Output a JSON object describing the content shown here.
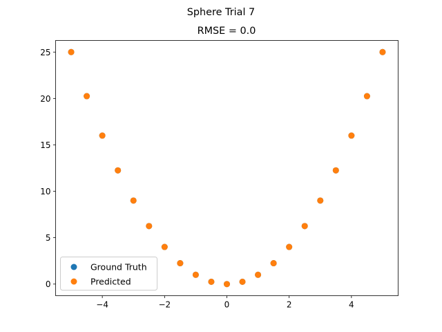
{
  "figure": {
    "suptitle": "Sphere Trial 7"
  },
  "chart_data": {
    "type": "scatter",
    "title": "RMSE = 0.0",
    "xlabel": "",
    "ylabel": "",
    "xlim": [
      -5.5,
      5.5
    ],
    "ylim": [
      -1.25,
      26.25
    ],
    "xticks": [
      -4,
      -2,
      0,
      2,
      4
    ],
    "xtick_labels": [
      "−4",
      "−2",
      "0",
      "2",
      "4"
    ],
    "yticks": [
      0,
      5,
      10,
      15,
      20,
      25
    ],
    "ytick_labels": [
      "0",
      "5",
      "10",
      "15",
      "20",
      "25"
    ],
    "grid": false,
    "legend_position": "lower-left",
    "series": [
      {
        "name": "Ground Truth",
        "color": "#1f77b4",
        "x": [
          -5,
          -4.5,
          -4,
          -3.5,
          -3,
          -2.5,
          -2,
          -1.5,
          -1,
          -0.5,
          0,
          0.5,
          1,
          1.5,
          2,
          2.5,
          3,
          3.5,
          4,
          4.5,
          5
        ],
        "y": [
          25,
          20.25,
          16,
          12.25,
          9,
          6.25,
          4,
          2.25,
          1,
          0.25,
          0,
          0.25,
          1,
          2.25,
          4,
          6.25,
          9,
          12.25,
          16,
          20.25,
          25
        ]
      },
      {
        "name": "Predicted",
        "color": "#ff7f0e",
        "x": [
          -5,
          -4.5,
          -4,
          -3.5,
          -3,
          -2.5,
          -2,
          -1.5,
          -1,
          -0.5,
          0,
          0.5,
          1,
          1.5,
          2,
          2.5,
          3,
          3.5,
          4,
          4.5,
          5
        ],
        "y": [
          25,
          20.25,
          16,
          12.25,
          9,
          6.25,
          4,
          2.25,
          1,
          0.25,
          0,
          0.25,
          1,
          2.25,
          4,
          6.25,
          9,
          12.25,
          16,
          20.25,
          25
        ]
      }
    ]
  }
}
